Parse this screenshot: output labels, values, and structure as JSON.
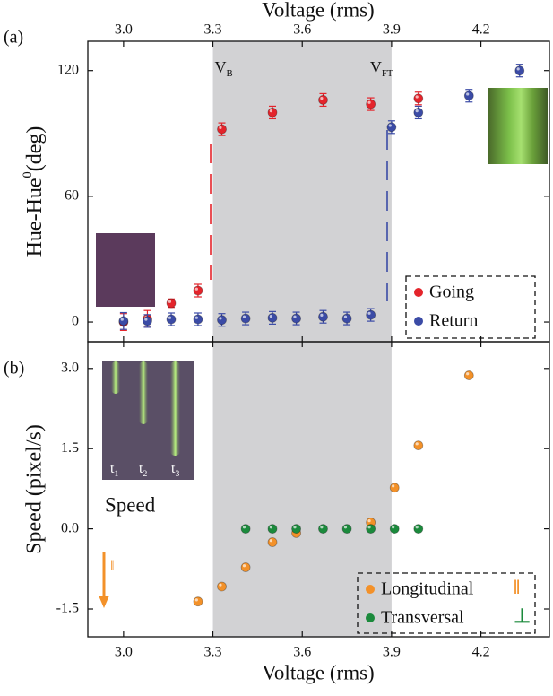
{
  "chart_data": [
    {
      "type": "scatter",
      "panel_label": "(a)",
      "x_label": "Voltage (rms)",
      "xaxis": "top",
      "y_label": {
        "text": "Hue-Hue",
        "sup": "0",
        "rest": "(deg)"
      },
      "xlim": [
        2.88,
        4.43
      ],
      "xticks": [
        {
          "value": 3,
          "label": "3.0"
        },
        3.3,
        3.6,
        3.9,
        4.2
      ],
      "ylim": [
        -9.4,
        134
      ],
      "yticks": [
        0,
        60,
        120
      ],
      "shade": [
        3.3,
        3.9
      ],
      "shade_color": "#d2d2d4",
      "shade_labels": [
        {
          "text": "V",
          "sub": "B"
        },
        {
          "text": "V",
          "sub": "FT"
        }
      ],
      "legend": "lower right",
      "series": [
        {
          "name": "Going",
          "color": "#e4242b",
          "x": [
            3.0,
            3.08,
            3.16,
            3.25,
            3.33,
            3.5,
            3.67,
            3.83,
            3.99
          ],
          "values": [
            0,
            1.5,
            9,
            15,
            92,
            100,
            106,
            104,
            106.7
          ],
          "errors": [
            4,
            4,
            2,
            3,
            3,
            3,
            3,
            3,
            3
          ]
        },
        {
          "name": "Return",
          "color": "#3b4ba6",
          "x": [
            3.0,
            3.08,
            3.16,
            3.25,
            3.33,
            3.41,
            3.5,
            3.58,
            3.67,
            3.75,
            3.83,
            3.9,
            3.99,
            4.16,
            4.33
          ],
          "values": [
            0.5,
            0.5,
            1.3,
            1.3,
            1,
            1.7,
            2,
            1.7,
            2.5,
            1.7,
            3.4,
            93,
            100,
            108,
            120
          ],
          "errors": [
            4,
            3,
            3,
            3,
            3,
            3,
            3,
            3,
            3,
            3,
            3,
            3,
            3,
            3,
            3
          ]
        }
      ]
    },
    {
      "type": "scatter",
      "panel_label": "(b)",
      "x_label": "Voltage (rms)",
      "xaxis": "bottom",
      "y_label": "Speed (pixel/s)",
      "xlim": [
        2.88,
        4.43
      ],
      "xticks": [
        {
          "value": 3,
          "label": "3.0"
        },
        3.3,
        3.6,
        3.9,
        4.2
      ],
      "ylim": [
        -2.02,
        3.5
      ],
      "yticks": [
        {
          "value": 3,
          "label": "3.0"
        },
        1.5,
        {
          "value": 0,
          "label": "0.0"
        },
        -1.5
      ],
      "shade": [
        3.3,
        3.9
      ],
      "shade_color": "#d2d2d4",
      "annotation": "Speed",
      "arrow_symbol": "‖",
      "inset_labels": [
        {
          "text": "t",
          "sub": "1"
        },
        {
          "text": "t",
          "sub": "2"
        },
        {
          "text": "t",
          "sub": "3"
        }
      ],
      "legend": "lower right",
      "series": [
        {
          "name": "Longitudinal",
          "symbol": "‖",
          "color": "#f39129",
          "x": [
            3.25,
            3.33,
            3.41,
            3.5,
            3.58,
            3.83,
            3.91,
            3.99,
            4.16
          ],
          "values": [
            -1.36,
            -1.08,
            -0.72,
            -0.25,
            -0.08,
            0.12,
            0.77,
            1.56,
            2.87
          ]
        },
        {
          "name": "Transversal",
          "symbol": "⊥",
          "color": "#1b8a3c",
          "x": [
            3.41,
            3.5,
            3.58,
            3.67,
            3.75,
            3.83,
            3.91,
            3.99
          ],
          "values": [
            0,
            0,
            0,
            0,
            0,
            0,
            0,
            0
          ]
        }
      ]
    }
  ]
}
